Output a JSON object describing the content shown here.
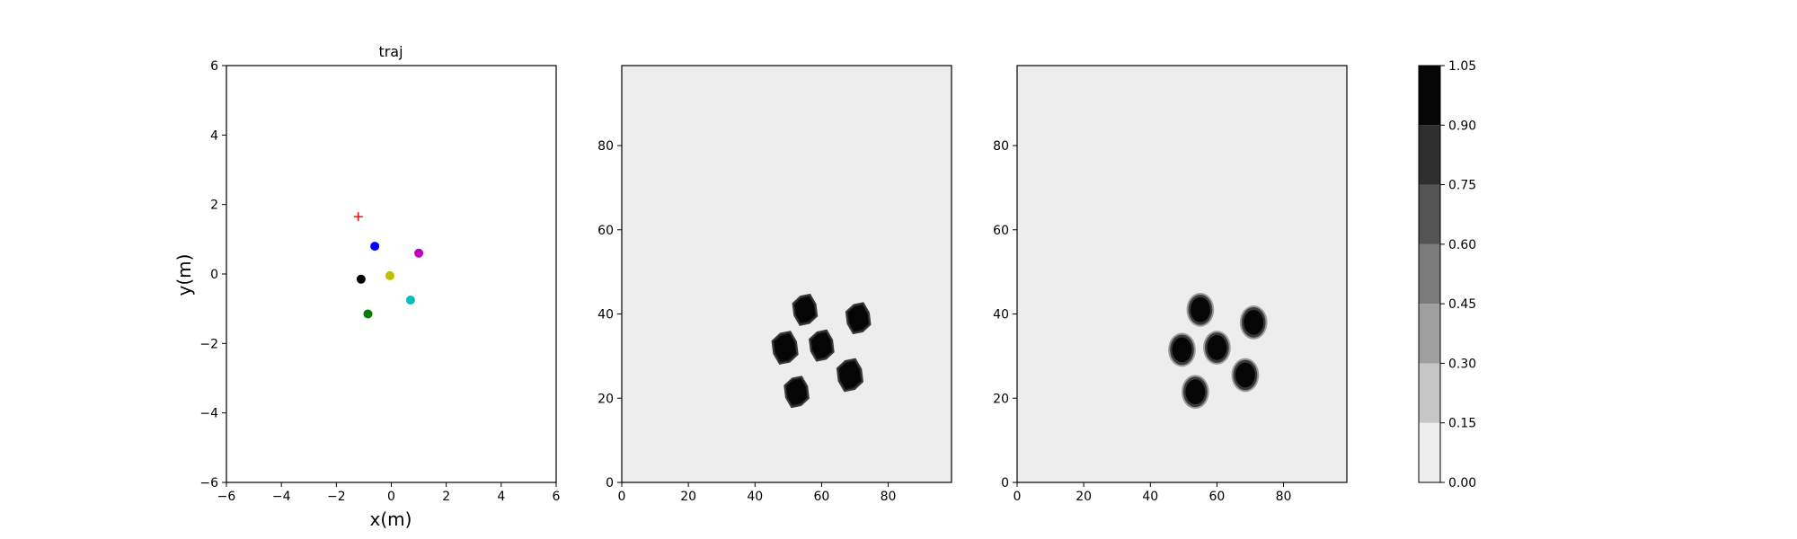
{
  "chart_data": [
    {
      "type": "scatter",
      "title": "traj",
      "xlabel": "x(m)",
      "ylabel": "y(m)",
      "xlim": [
        -6,
        6
      ],
      "ylim": [
        -6,
        6
      ],
      "xticks": [
        "−6",
        "−4",
        "−2",
        "0",
        "2",
        "4",
        "6"
      ],
      "yticks": [
        "−6",
        "−4",
        "−2",
        "0",
        "2",
        "4",
        "6"
      ],
      "grid": false,
      "points": [
        {
          "x": -1.2,
          "y": 1.65,
          "color": "#ff0000",
          "marker": "plus"
        },
        {
          "x": -0.6,
          "y": 0.8,
          "color": "#0000ff",
          "marker": "circle"
        },
        {
          "x": 1.0,
          "y": 0.6,
          "color": "#bf00bf",
          "marker": "circle"
        },
        {
          "x": -1.1,
          "y": -0.15,
          "color": "#000000",
          "marker": "circle"
        },
        {
          "x": -0.05,
          "y": -0.05,
          "color": "#bfbf00",
          "marker": "circle"
        },
        {
          "x": 0.7,
          "y": -0.75,
          "color": "#00bfbf",
          "marker": "circle"
        },
        {
          "x": -0.85,
          "y": -1.15,
          "color": "#008000",
          "marker": "circle"
        }
      ]
    },
    {
      "type": "heatmap",
      "title": "",
      "xlabel": "",
      "ylabel": "",
      "xlim": [
        0,
        99
      ],
      "ylim": [
        0,
        99
      ],
      "xticks": [
        "0",
        "20",
        "40",
        "60",
        "80"
      ],
      "yticks": [
        "0",
        "20",
        "40",
        "60",
        "80"
      ],
      "background_value": 0.1,
      "blob_value": 1.0,
      "blob_shape": "octagon",
      "blobs": [
        {
          "x": 55,
          "y": 41,
          "r": 3.6
        },
        {
          "x": 71,
          "y": 39,
          "r": 3.6
        },
        {
          "x": 49,
          "y": 32,
          "r": 3.8
        },
        {
          "x": 60,
          "y": 32.5,
          "r": 3.6
        },
        {
          "x": 68.5,
          "y": 25.5,
          "r": 3.8
        },
        {
          "x": 52.5,
          "y": 21.5,
          "r": 3.6
        }
      ]
    },
    {
      "type": "heatmap",
      "title": "",
      "xlabel": "",
      "ylabel": "",
      "xlim": [
        0,
        99
      ],
      "ylim": [
        0,
        99
      ],
      "xticks": [
        "0",
        "20",
        "40",
        "60",
        "80"
      ],
      "yticks": [
        "0",
        "20",
        "40",
        "60",
        "80"
      ],
      "background_value": 0.1,
      "blob_value": 1.0,
      "blob_shape": "ellipse",
      "blobs": [
        {
          "x": 55,
          "y": 41,
          "r": 3.6
        },
        {
          "x": 71,
          "y": 38,
          "r": 3.6
        },
        {
          "x": 49.5,
          "y": 31.5,
          "r": 3.6
        },
        {
          "x": 60,
          "y": 32,
          "r": 3.6
        },
        {
          "x": 68.5,
          "y": 25.5,
          "r": 3.6
        },
        {
          "x": 53.5,
          "y": 21.5,
          "r": 3.6
        }
      ]
    }
  ],
  "colorbar": {
    "ticks": [
      "0.00",
      "0.15",
      "0.30",
      "0.45",
      "0.60",
      "0.75",
      "0.90",
      "1.05"
    ],
    "levels": [
      0.0,
      0.15,
      0.3,
      0.45,
      0.6,
      0.75,
      0.9,
      1.05
    ],
    "colors": [
      "#ededed",
      "#c6c6c6",
      "#9f9f9f",
      "#7a7a7a",
      "#545454",
      "#2f2f2f",
      "#050505"
    ]
  }
}
